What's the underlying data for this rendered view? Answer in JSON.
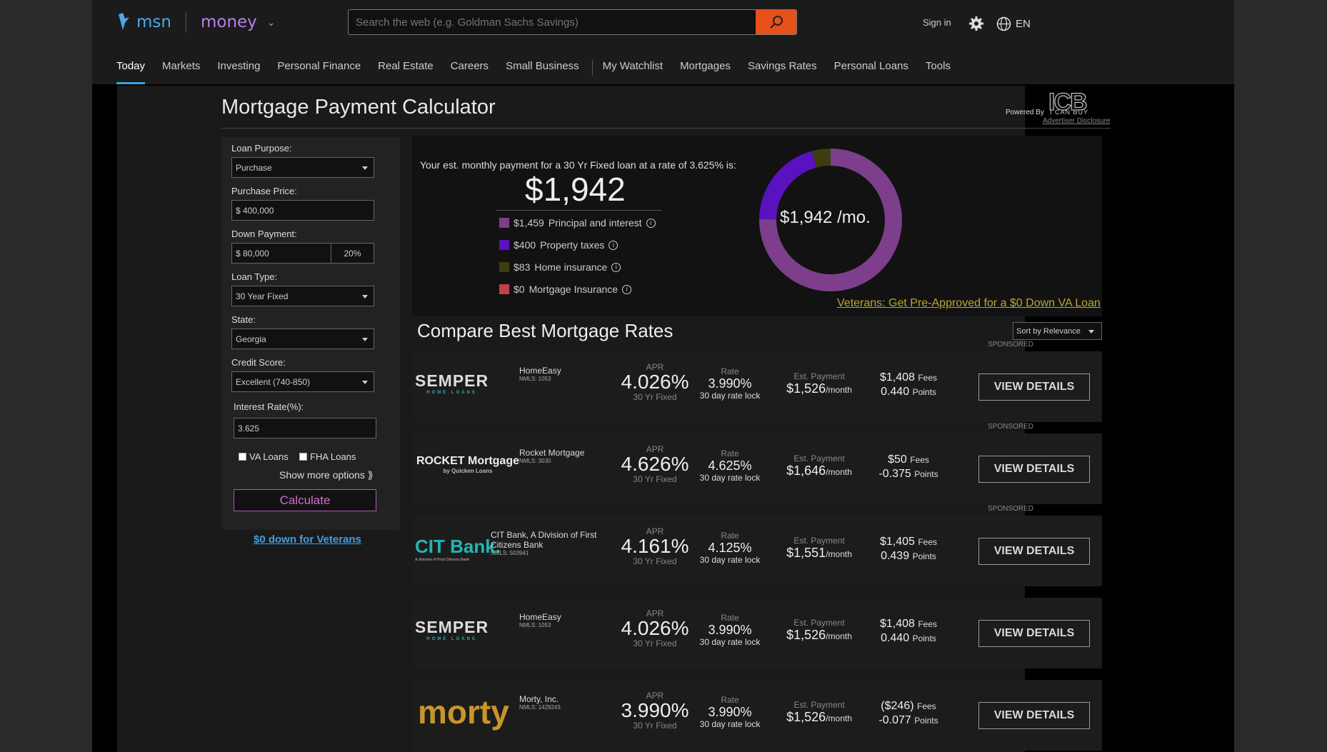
{
  "header": {
    "brand": "msn",
    "section": "money",
    "search_placeholder": "Search the web (e.g. Goldman Sachs Savings)",
    "sign_in": "Sign in",
    "language": "EN"
  },
  "nav": {
    "items": [
      "Today",
      "Markets",
      "Investing",
      "Personal Finance",
      "Real Estate",
      "Careers",
      "Small Business"
    ],
    "items2": [
      "My Watchlist",
      "Mortgages",
      "Savings Rates",
      "Personal Loans",
      "Tools"
    ]
  },
  "page": {
    "title": "Mortgage Payment Calculator",
    "powered_by": "Powered By",
    "icb": "ICB",
    "icb_sub": "I CAN BUY",
    "advertiser_disclosure": "Advertiser Disclosure"
  },
  "form": {
    "loan_purpose_label": "Loan Purpose:",
    "loan_purpose": "Purchase",
    "purchase_price_label": "Purchase Price:",
    "purchase_price": "$ 400,000",
    "down_payment_label": "Down Payment:",
    "down_payment": "$ 80,000",
    "down_payment_pct": "20%",
    "loan_type_label": "Loan Type:",
    "loan_type": "30 Year Fixed",
    "state_label": "State:",
    "state": "Georgia",
    "credit_score_label": "Credit Score:",
    "credit_score": "Excellent (740-850)",
    "interest_rate_label": "Interest Rate(%):",
    "interest_rate": "3.625",
    "va_loans": "VA Loans",
    "fha_loans": "FHA Loans",
    "show_more": "Show more options ⟫",
    "calculate": "Calculate",
    "veterans_link": "$0 down for Veterans"
  },
  "summary": {
    "est_text": "Your est. monthly payment for a 30 Yr Fixed loan at a rate of 3.625% is:",
    "total": "$1,942",
    "per_month": "$1,942 /mo.",
    "legend": [
      {
        "amount": "$1,459",
        "label": "Principal and interest",
        "color": "#7d3f8c"
      },
      {
        "amount": "$400",
        "label": "Property taxes",
        "color": "#5a12c0"
      },
      {
        "amount": "$83",
        "label": "Home insurance",
        "color": "#3d3d12"
      },
      {
        "amount": "$0",
        "label": "Mortgage Insurance",
        "color": "#c0404a"
      }
    ],
    "va_link": "Veterans: Get Pre-Approved for a $0 Down VA Loan"
  },
  "chart_data": {
    "type": "pie",
    "categories": [
      "Principal and interest",
      "Property taxes",
      "Home insurance",
      "Mortgage Insurance"
    ],
    "values": [
      1459,
      400,
      83,
      0
    ],
    "title": "$1,942 /mo."
  },
  "compare": {
    "title": "Compare Best Mortgage Rates",
    "sort": "Sort by Relevance",
    "sponsored": "SPONSORED",
    "apr_label": "APR",
    "rate_label": "Rate",
    "payment_label": "Est. Payment",
    "view": "VIEW DETAILS",
    "fees_label": "Fees",
    "points_label": "Points",
    "rows": [
      {
        "name": "HomeEasy",
        "nmls": "NMLS: 1053",
        "apr": "4.026%",
        "term": "30 Yr Fixed",
        "rate": "3.990%",
        "lock": "30 day rate lock",
        "payment": "$1,526",
        "per": "/month",
        "fees": "$1,408",
        "points": "0.440",
        "logo": "SEMPER",
        "logo_sub": "HOME LOANS",
        "sponsored": true
      },
      {
        "name": "Rocket Mortgage",
        "nmls": "NMLS: 3030",
        "apr": "4.626%",
        "term": "30 Yr Fixed",
        "rate": "4.625%",
        "lock": "30 day rate lock",
        "payment": "$1,646",
        "per": "/month",
        "fees": "$50",
        "points": "-0.375",
        "logo": "ROCKET Mortgage",
        "logo_sub": "by Quicken Loans",
        "sponsored": true
      },
      {
        "name": "CIT Bank, A Division of First Citizens Bank",
        "nmls": "NMLS: 503941",
        "apr": "4.161%",
        "term": "30 Yr Fixed",
        "rate": "4.125%",
        "lock": "30 day rate lock",
        "payment": "$1,551",
        "per": "/month",
        "fees": "$1,405",
        "points": "0.439",
        "logo": "CIT Bank.",
        "logo_sub": "A division of First Citizens Bank",
        "sponsored": true
      },
      {
        "name": "HomeEasy",
        "nmls": "NMLS: 1053",
        "apr": "4.026%",
        "term": "30 Yr Fixed",
        "rate": "3.990%",
        "lock": "30 day rate lock",
        "payment": "$1,526",
        "per": "/month",
        "fees": "$1,408",
        "points": "0.440",
        "logo": "SEMPER",
        "logo_sub": "HOME LOANS",
        "sponsored": false
      },
      {
        "name": "Morty, Inc.",
        "nmls": "NMLS: 1429243",
        "apr": "3.990%",
        "term": "30 Yr Fixed",
        "rate": "3.990%",
        "lock": "30 day rate lock",
        "payment": "$1,526",
        "per": "/month",
        "fees": "($246)",
        "points": "-0.077",
        "logo": "morty",
        "logo_sub": "",
        "sponsored": false
      }
    ]
  }
}
